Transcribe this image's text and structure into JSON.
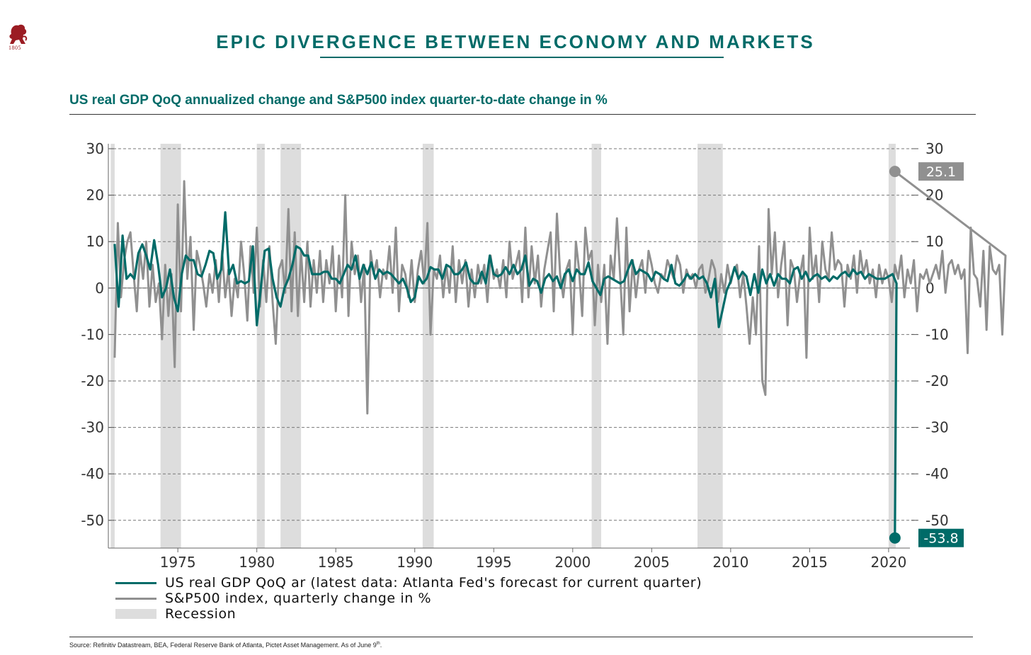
{
  "header": {
    "logo_year": "1805",
    "title": "EPIC DIVERGENCE BETWEEN ECONOMY AND MARKETS",
    "subtitle": "US real GDP QoQ annualized change and S&P500 index quarter-to-date change in %"
  },
  "legend": {
    "gdp": "US real GDP QoQ ar (latest data: Atlanta Fed's forecast for current quarter)",
    "sp500": "S&P500 index, quarterly change in %",
    "recession": "Recession"
  },
  "footer": {
    "source": "Source: Refinitiv Datastream, BEA, Federal Reserve Bank of Atlanta, Pictet Asset Management. As of June 9",
    "source_sup": "th",
    "source_end": "."
  },
  "colors": {
    "gdp": "#006b68",
    "sp500": "#909090",
    "recession": "#dddddd",
    "title": "#006b68",
    "logo": "#9b1c23"
  },
  "chart_data": {
    "type": "line",
    "title": "US real GDP QoQ annualized change and S&P500 index quarter-to-date change in %",
    "x_range": [
      1970.75,
      2020.75
    ],
    "ylim": [
      -55,
      30
    ],
    "y_ticks_left": [
      30,
      20,
      10,
      0,
      -10,
      -20,
      -30,
      -40,
      -50
    ],
    "y_ticks_right": [
      30,
      20,
      10,
      0,
      -10,
      -20,
      -30,
      -40,
      -50
    ],
    "x_ticks": [
      1975,
      1980,
      1985,
      1990,
      1995,
      2000,
      2005,
      2010,
      2015,
      2020
    ],
    "grid": true,
    "recessions": [
      [
        1970.75,
        1971.0
      ],
      [
        1973.9,
        1975.2
      ],
      [
        1980.0,
        1980.5
      ],
      [
        1981.5,
        1982.8
      ],
      [
        1990.5,
        1991.2
      ],
      [
        2001.2,
        2001.8
      ],
      [
        2007.9,
        2009.5
      ],
      [
        2020.0,
        2020.45
      ]
    ],
    "annotations": [
      {
        "series": "S&P500 index, quarterly change in %",
        "x": 2020.4,
        "y": 25.1,
        "label": "25.1"
      },
      {
        "series": "US real GDP QoQ ar",
        "x": 2020.4,
        "y": -53.8,
        "label": "-53.8"
      }
    ],
    "series": [
      {
        "name": "US real GDP QoQ ar",
        "x_start": 1971.0,
        "x_step": 0.25,
        "values": [
          9.5,
          -4,
          11.3,
          2,
          3,
          2,
          7.5,
          9.4,
          7,
          4,
          10.3,
          5,
          -2,
          0,
          4,
          -2,
          -5,
          3,
          7,
          6,
          6,
          3,
          2.5,
          5,
          8,
          7.5,
          2,
          4,
          16.3,
          3,
          5,
          1,
          1.5,
          1,
          1.5,
          9,
          -8,
          0,
          8,
          8.5,
          2,
          -2,
          -4,
          0,
          2,
          5,
          9,
          8.5,
          7,
          7,
          3,
          3,
          3,
          3.5,
          3.5,
          2,
          2,
          1,
          3,
          5,
          4,
          7,
          2,
          5,
          3,
          5.5,
          2,
          4,
          3,
          3.5,
          3,
          2,
          1,
          2,
          0,
          -3,
          -2,
          2.5,
          1,
          2,
          4.5,
          4,
          4,
          2,
          5,
          4.5,
          3,
          3,
          4,
          5.5,
          2,
          1,
          1,
          3.5,
          1,
          7,
          3,
          2.5,
          3,
          4.5,
          3,
          5,
          3,
          4,
          7,
          0.5,
          2,
          1.5,
          -1,
          2,
          3,
          1.5,
          2.5,
          0,
          3,
          4,
          1.5,
          4,
          3,
          3,
          5.5,
          1.5,
          0,
          -1.5,
          2,
          2.5,
          2,
          1.5,
          1,
          1.5,
          4,
          6,
          3,
          4,
          3.5,
          3,
          1.5,
          3.5,
          3,
          2,
          1.5,
          5,
          1,
          0.5,
          1.5,
          3,
          2,
          3,
          2,
          2.5,
          1,
          -2,
          2,
          -8.4,
          -4.5,
          -0.5,
          1.5,
          4.5,
          2,
          3.5,
          2.5,
          -1.5,
          3,
          -1,
          4,
          1,
          3,
          0.5,
          3,
          2,
          2,
          1,
          4,
          4.5,
          2,
          3.5,
          1.5,
          2.5,
          3,
          2,
          2.5,
          1.5,
          2.5,
          2,
          3,
          3.5,
          2.5,
          4,
          3,
          3.5,
          2,
          3,
          2.5,
          2,
          2,
          2,
          2.5,
          3,
          1,
          -53.8
        ]
      },
      {
        "name": "S&P500 index, quarterly change in %",
        "x_start": 1971.0,
        "x_step": 0.2,
        "values": [
          -15,
          14,
          -2,
          6,
          10,
          12,
          3,
          -5,
          8,
          2,
          10,
          -4,
          5,
          -3,
          1,
          -11,
          5,
          -6,
          3,
          -17,
          18,
          -5,
          23,
          2,
          11,
          -9,
          8,
          5,
          1,
          -4,
          3,
          -1,
          6,
          -3,
          8,
          -2,
          4,
          -6,
          2,
          -2,
          10,
          3,
          -7,
          9,
          -1,
          13,
          -4,
          6,
          -3,
          9,
          -3,
          -12,
          4,
          6,
          -1,
          17,
          -5,
          12,
          -6,
          8,
          -3,
          10,
          -4,
          6,
          -1,
          8,
          -3,
          6,
          1,
          9,
          -5,
          7,
          -2,
          20,
          -6,
          10,
          3,
          7,
          -3,
          5,
          -27,
          8,
          3,
          6,
          -2,
          4,
          2,
          9,
          -1,
          13,
          -5,
          5,
          3,
          -2,
          6,
          -3,
          4,
          8,
          1,
          14,
          -10,
          4,
          2,
          7,
          -2,
          5,
          -1,
          9,
          -3,
          6,
          1,
          6,
          -4,
          4,
          -2,
          5,
          1,
          5,
          -3,
          7,
          2,
          4,
          0,
          6,
          -2,
          10,
          2,
          5,
          8,
          -3,
          13,
          -2,
          9,
          1,
          7,
          -4,
          4,
          8,
          12,
          -5,
          16,
          3,
          -2,
          4,
          6,
          -10,
          10,
          4,
          -6,
          13,
          6,
          8,
          -8,
          5,
          -3,
          5,
          -12,
          7,
          2,
          15,
          3,
          -10,
          13,
          -5,
          6,
          -2,
          4,
          6,
          -1,
          8,
          5,
          1,
          -1,
          3,
          2,
          6,
          4,
          2,
          7,
          5,
          -1,
          4,
          2,
          3,
          0,
          4,
          5,
          -1,
          2,
          6,
          4,
          -3,
          3,
          -1,
          5,
          1,
          4,
          5,
          -2,
          3,
          -4,
          -12,
          -2,
          -10,
          9,
          -20,
          -23,
          17,
          3,
          12,
          -2,
          5,
          10,
          -8,
          6,
          4,
          -3,
          3,
          7,
          -15,
          13,
          2,
          7,
          -3,
          10,
          4,
          2,
          12,
          4,
          6,
          5,
          -4,
          5,
          2,
          7,
          -1,
          8,
          3,
          6,
          1,
          4,
          -2,
          5,
          1,
          4,
          2,
          -3,
          5,
          2,
          7,
          -2,
          4,
          1,
          6,
          -5,
          3,
          2,
          4,
          1,
          3,
          5,
          2,
          8,
          -1,
          5,
          6,
          3,
          5,
          2,
          4,
          -14,
          13,
          3,
          2,
          -4,
          8,
          -9,
          9,
          4,
          3,
          5,
          -10,
          7,
          25.1
        ]
      }
    ]
  }
}
